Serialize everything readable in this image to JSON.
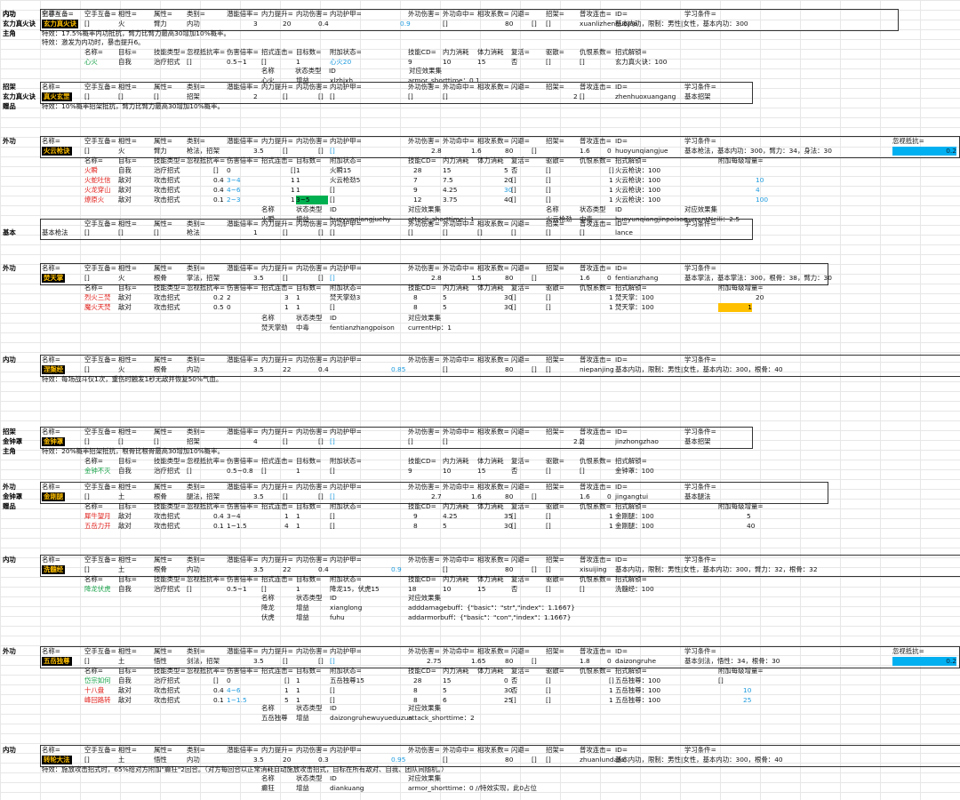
{
  "sheet": {
    "s1": {
      "cat": "内功",
      "sub1": "玄力真火诀",
      "sub2": "主角",
      "name": "玄力真火诀",
      "h": [
        "空手互备=",
        "相性=",
        "属性=",
        "类别=",
        "潜能倍率=",
        "内力提升=",
        "内功伤害=",
        "内功护甲=",
        "外功伤害=",
        "外功命中=",
        "相攻系数=",
        "闪避=",
        "招架=",
        "普攻连击=",
        "ID=",
        "学习条件="
      ],
      "v": [
        "[]",
        "火",
        "臂力",
        "内功",
        "3",
        "20",
        "0.4",
        "0.9",
        "[]",
        "80",
        "[]",
        "[]",
        "xuanlizhenhuojue",
        "基本内功，限制：男性|女性，基本内功：300"
      ],
      "t1": "特效：17.5%概率内功抵抗，臂力比臂力最高30增加10%概率。",
      "t2": "特效：激发为内功时，暴击提升6。",
      "skh": [
        "名称=",
        "目标=",
        "技能类型=",
        "忽视抵抗率=",
        "伤害倍率=",
        "招式连击=",
        "目标数=",
        "附加状态=",
        "技能CD=",
        "内力消耗",
        "体力消耗",
        "复活=",
        "驱散=",
        "仇恨系数=",
        "招式解锁="
      ],
      "skv": [
        "心火",
        "自我",
        "治疗招式",
        "[]",
        "0.5~1",
        "[]",
        "1",
        "心火20",
        "9",
        "10",
        "15",
        "否",
        "[]",
        "[]",
        "玄力真火诀：100"
      ],
      "sth": [
        "名称",
        "状态类型",
        "ID",
        "对应效果集"
      ],
      "stv": [
        "心火",
        "增益",
        "xlzhjxh",
        "armor_shorttime：0.1"
      ]
    },
    "s2": {
      "cat": "招架",
      "sub1": "玄力真火诀",
      "sub2": "赠品",
      "name": "真火玄罡",
      "v": [
        "[]",
        "[]",
        "[]",
        "招架",
        "2",
        "[]",
        "[]",
        "[]",
        "[]",
        "[]",
        "2",
        "[]",
        "zhenhuoxuangang",
        "基本招架"
      ],
      "t1": "特效：10%概率招架抵抗，臂力比臂力最高30增加10%概率。"
    },
    "s3": {
      "cat": "外功",
      "name": "火云枪诀",
      "extra": "忽视抵抗=",
      "extraval": "0.2",
      "v": [
        "[]",
        "火",
        "臂力",
        "枪法，招架",
        "3.5",
        "[]",
        "[]",
        "[]",
        "2.8",
        "1.6",
        "80",
        "[]",
        "1.6",
        "0",
        "huoyunqiangjue",
        "基本枪法，基本内功：300，臂力：34，身法：30"
      ],
      "skh2": "附加每级增量=",
      "rows": [
        [
          "火瞬",
          "自我",
          "治疗招式",
          "[]",
          "0",
          "[]",
          "1",
          "火瞬15",
          "28",
          "15",
          "5",
          "否",
          "[]",
          "[]",
          "火云枪诀：100",
          ""
        ],
        [
          "火蛇吐信",
          "敌对",
          "攻击招式",
          "0.4",
          "3~4",
          "1",
          "1",
          "火云枪劲5",
          "7",
          "7.5",
          "20",
          "[]",
          "[]",
          "1",
          "火云枪诀：100",
          "10"
        ],
        [
          "火龙穿山",
          "敌对",
          "攻击招式",
          "0.4",
          "4~6",
          "1",
          "1",
          "[]",
          "9",
          "4.25",
          "30",
          "[]",
          "[]",
          "1",
          "火云枪诀：100",
          "4"
        ],
        [
          "燎原火",
          "敌对",
          "攻击招式",
          "0.1",
          "2~3",
          "1",
          "3~5",
          "[]",
          "12",
          "3.75",
          "40",
          "[]",
          "[]",
          "1",
          "火云枪诀：100",
          "100"
        ]
      ],
      "st": [
        [
          "火瞬",
          "增益",
          "huoyunqiangjuehy",
          "attack_shorttime：1",
          "",
          "",
          "",
          ""
        ],
        [
          "",
          "",
          "",
          "",
          "火云枪劲",
          "中毒",
          "huoyunqiangjinpoison",
          "currentNeili：2.5"
        ]
      ],
      "sth2": [
        "名称",
        "状态类型",
        "ID",
        "对应效果集"
      ]
    },
    "s4": {
      "cat": "基本",
      "name": "基本枪法",
      "v": [
        "[]",
        "[]",
        "[]",
        "枪法",
        "1",
        "[]",
        "[]",
        "[]",
        "[]",
        "[]",
        "[]",
        "[]",
        "[]",
        "[]",
        "lance",
        ""
      ]
    },
    "s5": {
      "cat": "外功",
      "name": "焚天掌",
      "v": [
        "[]",
        "火",
        "根骨",
        "掌法，招架",
        "3.5",
        "[]",
        "[]",
        "[]",
        "2.8",
        "1.5",
        "80",
        "[]",
        "1.6",
        "0",
        "fentianzhang",
        "基本掌法，基本掌法：300，根骨：38，臂力：30"
      ],
      "rows": [
        [
          "烈火三焚",
          "敌对",
          "攻击招式",
          "0.2",
          "2",
          "3",
          "1",
          "焚天掌劲3",
          "8",
          "5",
          "30",
          "[]",
          "[]",
          "1",
          "焚天掌：100",
          "20"
        ],
        [
          "魔火天焚",
          "敌对",
          "攻击招式",
          "0.5",
          "0",
          "1",
          "1",
          "[]",
          "8",
          "5",
          "30",
          "[]",
          "[]",
          "1",
          "焚天掌：100",
          "1"
        ]
      ],
      "st": [
        "焚天掌劲",
        "中毒",
        "fentianzhangpoison",
        "currentHp：1"
      ]
    },
    "s6": {
      "cat": "内功",
      "name": "涅槃经",
      "v": [
        "[]",
        "火",
        "根骨",
        "内功",
        "3.5",
        "22",
        "0.4",
        "0.85",
        "[]",
        "80",
        "[]",
        "[]",
        "niepanjing",
        "基本内功，限制：男性|女性，基本内功：300，根骨：40"
      ],
      "t1": "特效：每场战斗仅1次，重伤时触发1秒无敌并恢复50%气血。"
    },
    "s7": {
      "cat": "招架",
      "sub1": "金钟罩",
      "sub2": "主角",
      "name": "金钟罩",
      "v": [
        "[]",
        "[]",
        "[]",
        "招架",
        "4",
        "[]",
        "[]",
        "[]",
        "[]",
        "[]",
        "2.2",
        "[]",
        "jinzhongzhao",
        "基本招架"
      ],
      "t1": "特效：20%概率招架抵抗，根骨比根骨最高30增加10%概率。",
      "skv": [
        "金钟不灭",
        "自我",
        "治疗招式",
        "[]",
        "0.5~0.8",
        "[]",
        "1",
        "[]",
        "9",
        "10",
        "15",
        "否",
        "[]",
        "[]",
        "金钟罩：100"
      ]
    },
    "s8": {
      "cat": "外功",
      "sub1": "金钟罩",
      "sub2": "赠品",
      "name": "金刚腿",
      "v": [
        "[]",
        "土",
        "根骨",
        "腿法，招架",
        "3.5",
        "[]",
        "[]",
        "[]",
        "2.7",
        "1.6",
        "80",
        "[]",
        "1.6",
        "0",
        "jingangtui",
        "基本腿法"
      ],
      "rows": [
        [
          "犀牛望月",
          "敌对",
          "攻击招式",
          "0.4",
          "3~4",
          "1",
          "1",
          "[]",
          "9",
          "4.25",
          "35",
          "[]",
          "[]",
          "1",
          "金刚腿：100",
          "5"
        ],
        [
          "五岳力开",
          "敌对",
          "攻击招式",
          "0.1",
          "1~1.5",
          "4",
          "1",
          "[]",
          "8",
          "5",
          "30",
          "[]",
          "[]",
          "1",
          "金刚腿：100",
          "40"
        ]
      ]
    },
    "s9": {
      "cat": "内功",
      "name": "洗髓经",
      "v": [
        "[]",
        "土",
        "根骨",
        "内功",
        "3.5",
        "22",
        "0.4",
        "0.9",
        "[]",
        "80",
        "[]",
        "[]",
        "xisuijing",
        "基本内功，限制：男性|女性，基本内功：300，臂力：32，根骨：32"
      ],
      "skv": [
        "降龙伏虎",
        "自我",
        "治疗招式",
        "[]",
        "0.5~1",
        "[]",
        "1",
        "降龙15，伏虎15",
        "18",
        "10",
        "15",
        "否",
        "[]",
        "[]",
        "洗髓经：100"
      ],
      "st": [
        [
          "降龙",
          "增益",
          "xianglong",
          "adddamagebuff：{\"basic\"：\"str\",\"index\"：1.1667}"
        ],
        [
          "伏虎",
          "增益",
          "fuhu",
          "addarmorbuff：{\"basic\"：\"con\",\"index\"：1.1667}"
        ]
      ]
    },
    "s10": {
      "cat": "外功",
      "name": "五岳独尊",
      "extra": "忽视抵抗=",
      "extraval": "0.2",
      "v": [
        "[]",
        "土",
        "悟性",
        "剑法，招架",
        "3.5",
        "[]",
        "[]",
        "[]",
        "2.75",
        "1.65",
        "80",
        "[]",
        "1.8",
        "0",
        "daizongruhe",
        "基本剑法，悟性：34，根骨：30"
      ],
      "rows": [
        [
          "岱宗如何",
          "自我",
          "治疗招式",
          "[]",
          "0",
          "[]",
          "1",
          "五岳独尊15",
          "28",
          "15",
          "0",
          "否",
          "[]",
          "[]",
          "五岳独尊：100",
          "[]"
        ],
        [
          "十八盘",
          "敌对",
          "攻击招式",
          "0.4",
          "4~6",
          "1",
          "1",
          "[]",
          "8",
          "5",
          "30",
          "否",
          "[]",
          "1",
          "五岳独尊：100",
          "10"
        ],
        [
          "峰回路转",
          "敌对",
          "攻击招式",
          "0.1",
          "1~1.5",
          "5",
          "1",
          "[]",
          "8",
          "6",
          "25",
          "[]",
          "[]",
          "1",
          "五岳独尊：100",
          "25"
        ]
      ],
      "st": [
        "五岳独尊",
        "增益",
        "daizongruhewuyueduzun",
        "attack_shorttime：2"
      ]
    },
    "s11": {
      "cat": "内功",
      "name": "转轮大法",
      "v": [
        "[]",
        "土",
        "悟性",
        "内功",
        "3.5",
        "20",
        "0.3",
        "0.95",
        "[]",
        "80",
        "[]",
        "[]",
        "zhuanlundafa",
        "基本内功，限制：男性|女性，基本内功：300，根骨：40"
      ],
      "t1": "特效：施放攻击招式时，65%给对方附加\"癫狂\"2回合。（对方每回合以正常消耗自动施放攻击招式，目标在所有敌对、自我、团队间随机。）",
      "st": [
        "癫狂",
        "增益",
        "diankuang",
        "armor_shorttime：0 //特效实现，此0占位"
      ]
    }
  }
}
